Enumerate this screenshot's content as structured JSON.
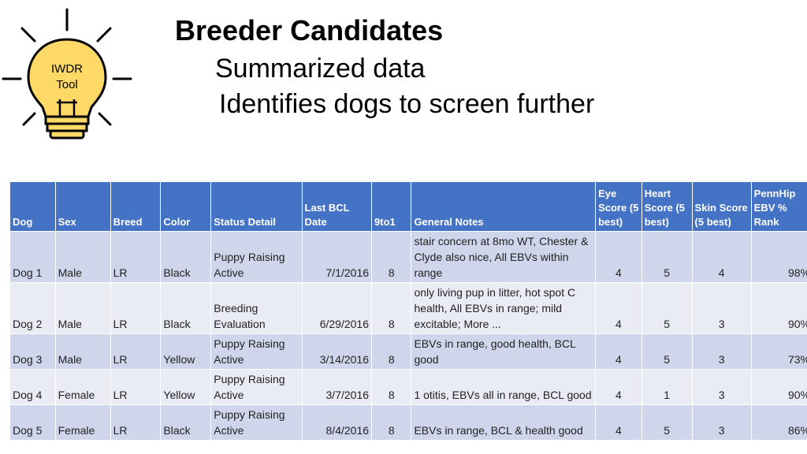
{
  "tool_badge": {
    "line1": "IWDR",
    "line2": "Tool",
    "colors": {
      "bulb_fill": "#ffd966",
      "outline": "#000000"
    }
  },
  "heading": {
    "title": "Breeder Candidates",
    "subtitle_1": "Summarized data",
    "subtitle_2": "Identifies dogs to screen further"
  },
  "table": {
    "header_color": "#4472c4",
    "row_colors": [
      "#cfd5ea",
      "#e9ebf5"
    ],
    "columns": [
      "Dog",
      "Sex",
      "Breed",
      "Color",
      "Status Detail",
      "Last BCL Date",
      "9to1",
      "General Notes",
      "Eye Score (5 best)",
      "Heart Score (5 best)",
      "Skin Score (5 best)",
      "PennHip EBV % Rank"
    ],
    "rows": [
      [
        "Dog 1",
        "Male",
        "LR",
        "Black",
        "Puppy Raising Active",
        "7/1/2016",
        "8",
        "stair concern at 8mo WT, Chester & Clyde also nice, All EBVs within range",
        "4",
        "5",
        "4",
        "98%"
      ],
      [
        "Dog 2",
        "Male",
        "LR",
        "Black",
        "Breeding Evaluation",
        "6/29/2016",
        "8",
        "only living pup in litter, hot spot C health, All EBVs in range; mild excitable; More ...",
        "4",
        "5",
        "3",
        "90%"
      ],
      [
        "Dog 3",
        "Male",
        "LR",
        "Yellow",
        "Puppy Raising Active",
        "3/14/2016",
        "8",
        "EBVs in range, good health, BCL good",
        "4",
        "5",
        "3",
        "73%"
      ],
      [
        "Dog 4",
        "Female",
        "LR",
        "Yellow",
        "Puppy Raising Active",
        "3/7/2016",
        "8",
        "1 otitis, EBVs all in range, BCL good",
        "4",
        "1",
        "3",
        "90%"
      ],
      [
        "Dog 5",
        "Female",
        "LR",
        "Black",
        "Puppy Raising Active",
        "8/4/2016",
        "8",
        "EBVs in range, BCL & health good",
        "4",
        "5",
        "3",
        "86%"
      ]
    ]
  }
}
